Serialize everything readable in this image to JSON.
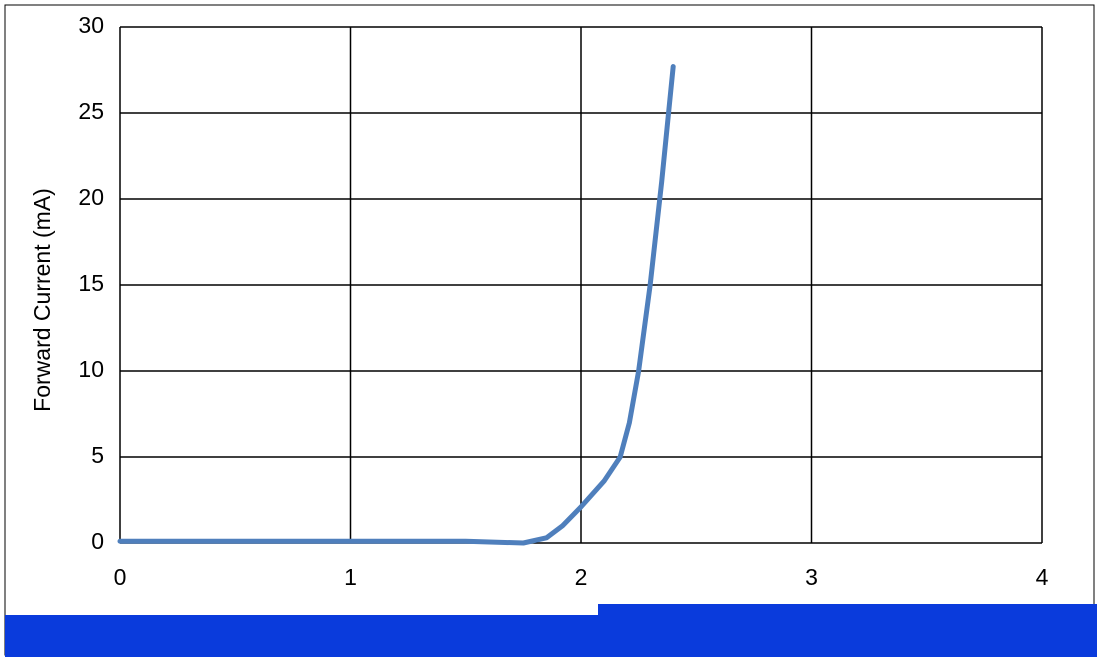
{
  "chart_data": {
    "type": "line",
    "y_label": "Forward Current (mA)",
    "x": [
      0,
      0.5,
      1,
      1.5,
      1.75,
      1.85,
      1.92,
      2,
      2.1,
      2.17,
      2.21,
      2.25,
      2.3,
      2.35,
      2.4
    ],
    "series": [
      {
        "color": "#4f7fbc",
        "values": [
          0.1,
          0.1,
          0.1,
          0.1,
          0,
          0.3,
          1,
          2.1,
          3.6,
          5,
          7,
          10,
          15,
          21,
          27.7
        ]
      }
    ],
    "xlim": [
      0,
      4
    ],
    "xticks": [
      0,
      1,
      2,
      3,
      4
    ],
    "ylim": [
      0,
      30
    ],
    "yticks": [
      0,
      5,
      10,
      15,
      20,
      25,
      30
    ],
    "grid": true
  }
}
